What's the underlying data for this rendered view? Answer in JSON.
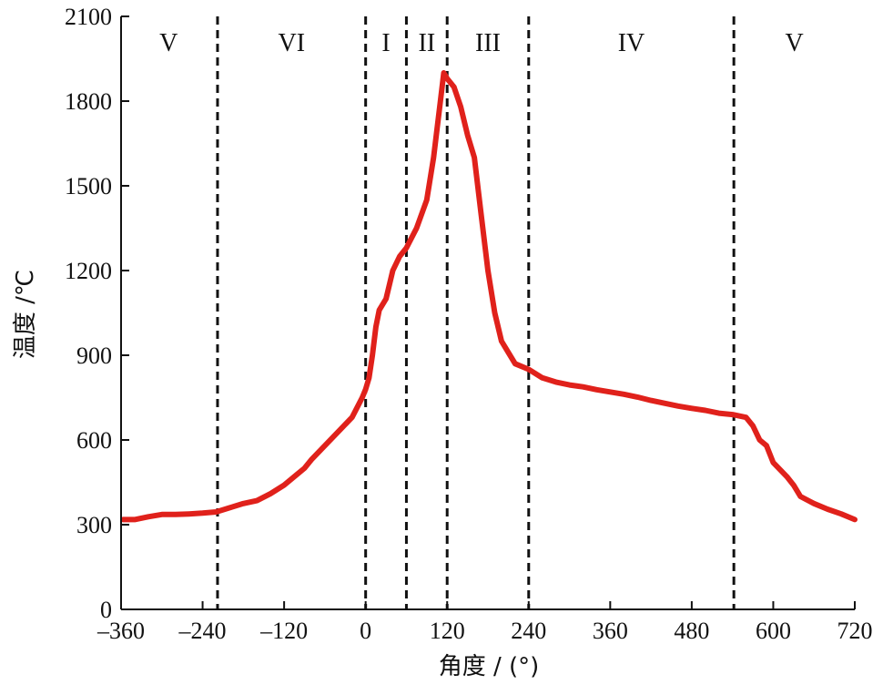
{
  "chart_data": {
    "type": "line",
    "xlabel": "角度 / (°)",
    "ylabel": "温度 /℃",
    "xlim": [
      -360,
      720
    ],
    "ylim": [
      0,
      2100
    ],
    "x_ticks": [
      "–360",
      "–240",
      "–120",
      "0",
      "120",
      "240",
      "360",
      "480",
      "600",
      "720"
    ],
    "x_tick_values": [
      -360,
      -240,
      -120,
      0,
      120,
      240,
      360,
      480,
      600,
      720
    ],
    "y_ticks": [
      "0",
      "300",
      "600",
      "900",
      "1200",
      "1500",
      "1800",
      "2100"
    ],
    "y_tick_values": [
      0,
      300,
      600,
      900,
      1200,
      1500,
      1800,
      2100
    ],
    "line_color": "#e0211b",
    "boundaries": [
      -218,
      0,
      60,
      120,
      240,
      542
    ],
    "regions": [
      {
        "label": "V",
        "x": -290
      },
      {
        "label": "VI",
        "x": -109
      },
      {
        "label": "I",
        "x": 30
      },
      {
        "label": "II",
        "x": 90
      },
      {
        "label": "III",
        "x": 180
      },
      {
        "label": "IV",
        "x": 391
      },
      {
        "label": "V",
        "x": 631
      }
    ],
    "series": [
      {
        "x": [
          -357,
          -340,
          -320,
          -300,
          -280,
          -260,
          -240,
          -220,
          -200,
          -180,
          -160,
          -140,
          -120,
          -100,
          -90,
          -80,
          -60,
          -40,
          -20,
          -5,
          0,
          5,
          10,
          15,
          20,
          30,
          40,
          50,
          60,
          75,
          90,
          100,
          110,
          115,
          120,
          130,
          140,
          150,
          160,
          170,
          180,
          190,
          200,
          210,
          220,
          240,
          260,
          280,
          300,
          320,
          340,
          360,
          380,
          400,
          420,
          440,
          460,
          480,
          500,
          520,
          540,
          560,
          570,
          580,
          590,
          600,
          620,
          630,
          640,
          660,
          680,
          700,
          720
        ],
        "y": [
          318,
          318,
          328,
          336,
          336,
          338,
          341,
          345,
          360,
          375,
          385,
          410,
          440,
          480,
          500,
          530,
          580,
          630,
          680,
          750,
          780,
          820,
          900,
          1000,
          1060,
          1100,
          1200,
          1250,
          1280,
          1350,
          1450,
          1600,
          1800,
          1900,
          1880,
          1850,
          1780,
          1680,
          1600,
          1400,
          1200,
          1050,
          950,
          910,
          870,
          850,
          820,
          805,
          795,
          788,
          778,
          770,
          762,
          752,
          740,
          730,
          720,
          712,
          705,
          695,
          690,
          680,
          650,
          600,
          580,
          520,
          470,
          440,
          400,
          375,
          355,
          338,
          318
        ]
      }
    ]
  }
}
